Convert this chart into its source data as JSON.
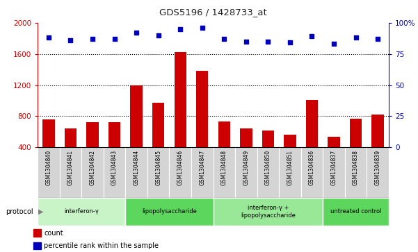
{
  "title": "GDS5196 / 1428733_at",
  "samples": [
    "GSM1304840",
    "GSM1304841",
    "GSM1304842",
    "GSM1304843",
    "GSM1304844",
    "GSM1304845",
    "GSM1304846",
    "GSM1304847",
    "GSM1304848",
    "GSM1304849",
    "GSM1304850",
    "GSM1304851",
    "GSM1304836",
    "GSM1304837",
    "GSM1304838",
    "GSM1304839"
  ],
  "counts": [
    755,
    645,
    720,
    720,
    1200,
    970,
    1620,
    1380,
    730,
    640,
    620,
    560,
    1010,
    540,
    770,
    820
  ],
  "percentiles": [
    88,
    86,
    87,
    87,
    92,
    90,
    95,
    96,
    87,
    85,
    85,
    84,
    89,
    83,
    88,
    87
  ],
  "groups": [
    {
      "label": "interferon-γ",
      "start": 0,
      "end": 4,
      "color": "#c8f4c8"
    },
    {
      "label": "lipopolysaccharide",
      "start": 4,
      "end": 8,
      "color": "#5cd65c"
    },
    {
      "label": "interferon-γ +\nlipopolysaccharide",
      "start": 8,
      "end": 13,
      "color": "#98e898"
    },
    {
      "label": "untreated control",
      "start": 13,
      "end": 16,
      "color": "#5cd65c"
    }
  ],
  "ylim_left": [
    400,
    2000
  ],
  "ylim_right": [
    0,
    100
  ],
  "yticks_left": [
    400,
    800,
    1200,
    1600,
    2000
  ],
  "yticks_right": [
    0,
    25,
    50,
    75,
    100
  ],
  "bar_color": "#cc0000",
  "dot_color": "#0000bb",
  "sample_box_color": "#d4d4d4",
  "plot_bg": "#ffffff",
  "left_axis_color": "#cc0000",
  "right_axis_color": "#0000bb",
  "dotted_lines": [
    800,
    1200,
    1600
  ],
  "legend_count_label": "count",
  "legend_pct_label": "percentile rank within the sample",
  "bar_width": 0.55
}
